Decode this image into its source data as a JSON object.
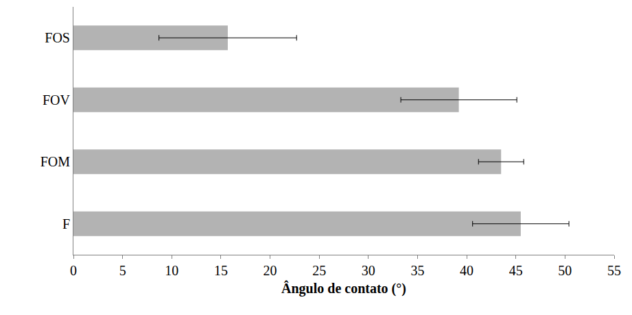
{
  "chart_data": {
    "type": "bar",
    "orientation": "horizontal",
    "x_label": "Ângulo de contato (°)",
    "categories": [
      "F",
      "FOM",
      "FOV",
      "FOS"
    ],
    "values": [
      45.5,
      43.5,
      39.2,
      15.7
    ],
    "errors": [
      4.9,
      2.3,
      5.9,
      7.0
    ],
    "color": "#b3b3b3",
    "xlim": [
      0,
      55
    ],
    "xticks": [
      0,
      5,
      10,
      15,
      20,
      25,
      30,
      35,
      40,
      45,
      50,
      55
    ],
    "grid": false
  }
}
